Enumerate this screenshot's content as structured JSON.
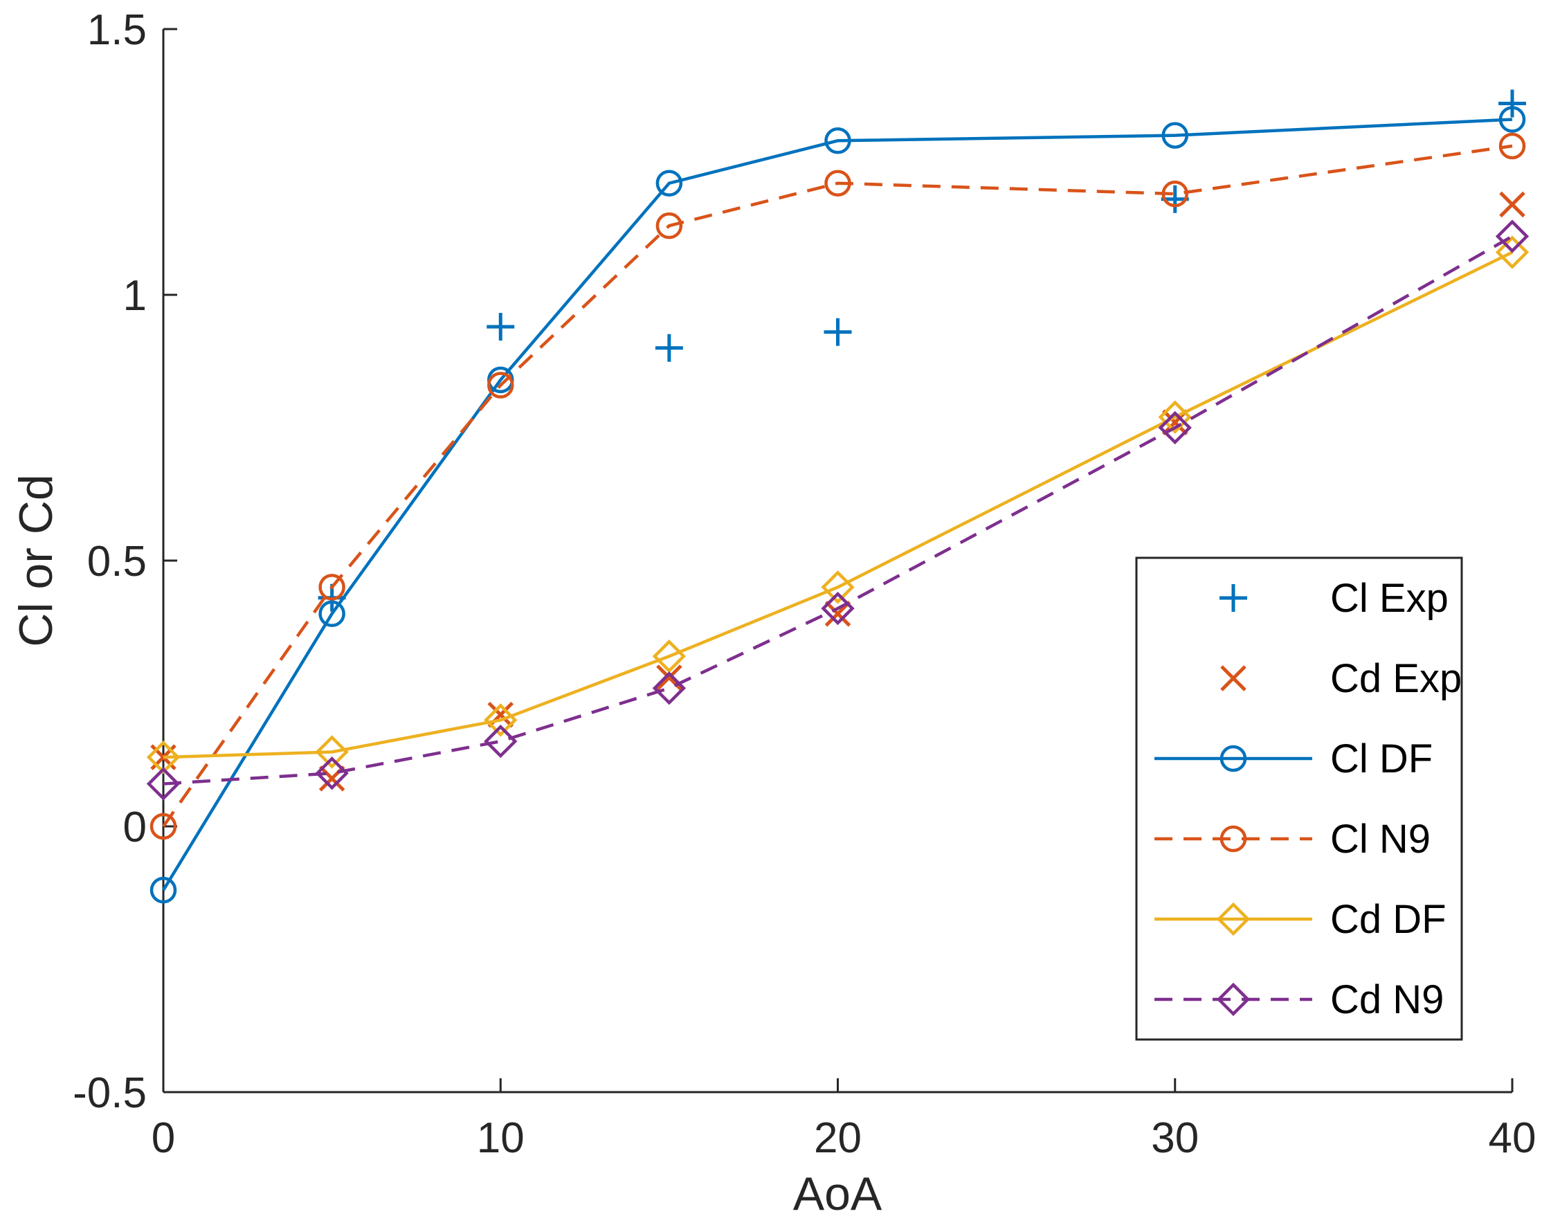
{
  "chart_data": {
    "type": "line",
    "title": "",
    "xlabel": "AoA",
    "ylabel": "Cl or Cd",
    "xlim": [
      0,
      40
    ],
    "ylim": [
      -0.5,
      1.5
    ],
    "xticks": [
      0,
      10,
      20,
      30,
      40
    ],
    "xtick_labels": [
      "0",
      "10",
      "20",
      "30",
      "40"
    ],
    "yticks": [
      -0.5,
      0,
      0.5,
      1,
      1.5
    ],
    "ytick_labels": [
      "-0.5",
      "0",
      "0.5",
      "1",
      "1.5"
    ],
    "grid": false,
    "axis_color": "#262626",
    "legend": {
      "position": "right-lower",
      "border_color": "#262626",
      "background": "#ffffff",
      "entries": [
        "Cl Exp",
        "Cd Exp",
        "Cl DF",
        "Cl N9",
        "Cd DF",
        "Cd N9"
      ]
    },
    "series": [
      {
        "name": "Cl Exp",
        "color": "#0072BD",
        "marker": "plus",
        "line_style": "none",
        "x": [
          5,
          10,
          15,
          20,
          30,
          40
        ],
        "y": [
          0.43,
          0.94,
          0.9,
          0.93,
          1.18,
          1.36
        ]
      },
      {
        "name": "Cd Exp",
        "color": "#D95319",
        "marker": "x",
        "line_style": "none",
        "x": [
          0,
          5,
          10,
          15,
          20,
          30,
          40
        ],
        "y": [
          0.13,
          0.09,
          0.21,
          0.28,
          0.4,
          0.76,
          1.17
        ]
      },
      {
        "name": "Cl DF",
        "color": "#0072BD",
        "marker": "circle",
        "line_style": "solid",
        "x": [
          0,
          5,
          10,
          15,
          20,
          30,
          40
        ],
        "y": [
          -0.12,
          0.4,
          0.84,
          1.21,
          1.29,
          1.3,
          1.33
        ]
      },
      {
        "name": "Cl N9",
        "color": "#D95319",
        "marker": "circle",
        "line_style": "dashed",
        "x": [
          0,
          5,
          10,
          15,
          20,
          30,
          40
        ],
        "y": [
          0.0,
          0.45,
          0.83,
          1.13,
          1.21,
          1.19,
          1.28
        ]
      },
      {
        "name": "Cd DF",
        "color": "#EDB120",
        "marker": "diamond",
        "line_style": "solid",
        "x": [
          0,
          5,
          10,
          15,
          20,
          30,
          40
        ],
        "y": [
          0.13,
          0.14,
          0.2,
          0.32,
          0.45,
          0.77,
          1.08
        ]
      },
      {
        "name": "Cd N9",
        "color": "#7E2F8E",
        "marker": "diamond",
        "line_style": "dashed",
        "x": [
          0,
          5,
          10,
          15,
          20,
          30,
          40
        ],
        "y": [
          0.08,
          0.1,
          0.16,
          0.26,
          0.41,
          0.75,
          1.11
        ]
      }
    ]
  }
}
